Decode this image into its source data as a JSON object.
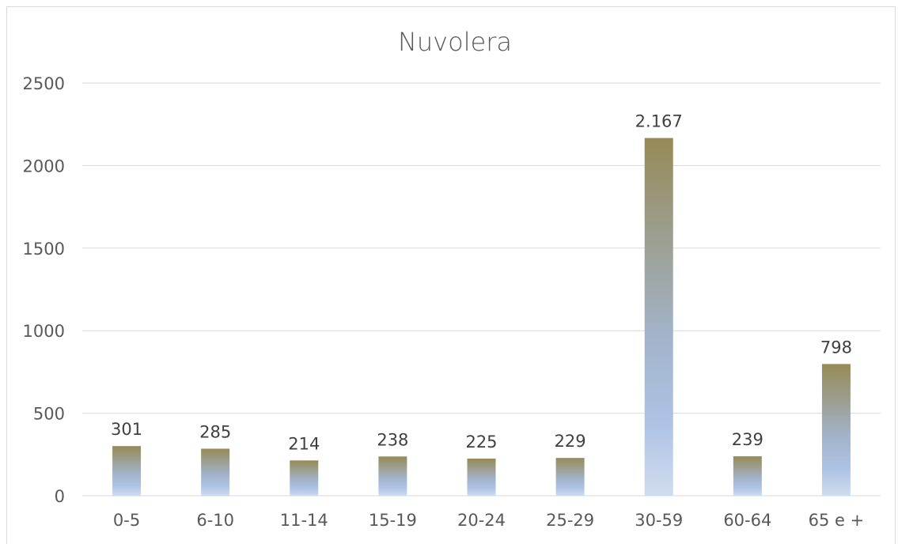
{
  "chart_data": {
    "type": "bar",
    "title": "Nuvolera",
    "xlabel": "",
    "ylabel": "",
    "categories": [
      "0-5",
      "6-10",
      "11-14",
      "15-19",
      "20-24",
      "25-29",
      "30-59",
      "60-64",
      "65 e +"
    ],
    "values": [
      301,
      285,
      214,
      238,
      225,
      229,
      2167,
      239,
      798
    ],
    "data_labels": [
      "301",
      "285",
      "214",
      "238",
      "225",
      "229",
      "2.167",
      "239",
      "798"
    ],
    "ylim": [
      0,
      2500
    ],
    "yticks": [
      0,
      500,
      1000,
      1500,
      2000,
      2500
    ],
    "grid": true,
    "legend": "none",
    "colors": {
      "bar_top": "#968a56",
      "bar_mid": "#aebfdc",
      "bar_bottom": "#d4deee",
      "grid": "#d9d9d9",
      "text": "#595959"
    }
  }
}
